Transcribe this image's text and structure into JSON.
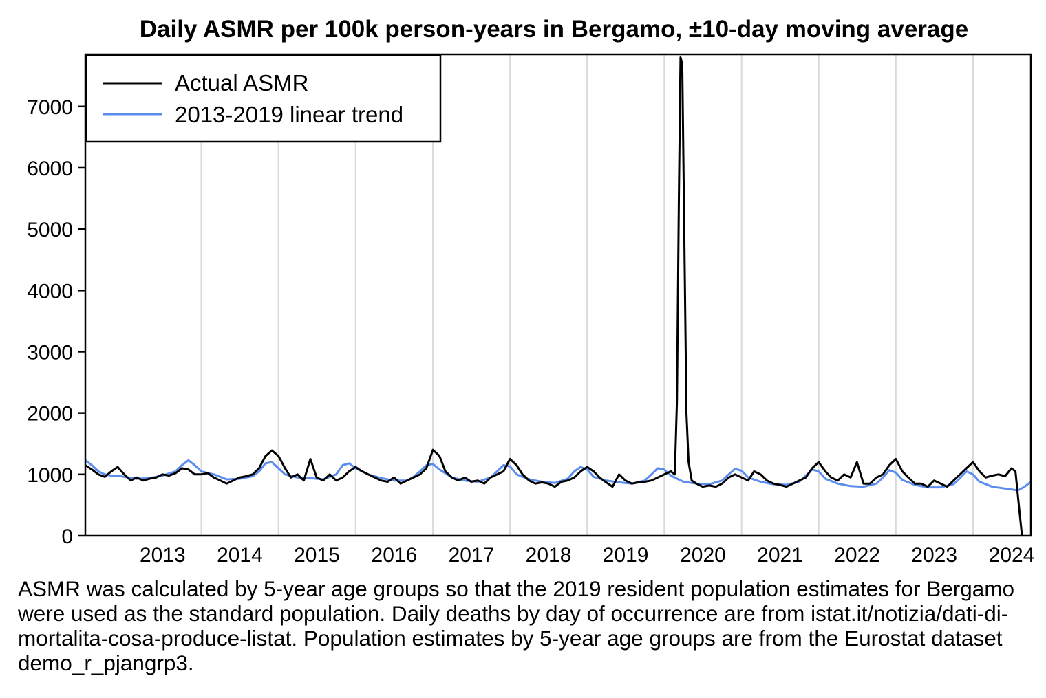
{
  "chart_data": {
    "type": "line",
    "title": "Daily ASMR per 100k person-years in Bergamo, ±10-day moving average",
    "xlabel": "",
    "ylabel": "",
    "x_range": [
      "2012-07-01",
      "2024-10-01"
    ],
    "ylim": [
      0,
      7850
    ],
    "y_ticks": [
      0,
      1000,
      2000,
      3000,
      4000,
      5000,
      6000,
      7000
    ],
    "x_tick_labels": [
      "2013",
      "2014",
      "2015",
      "2016",
      "2017",
      "2018",
      "2019",
      "2020",
      "2021",
      "2022",
      "2023",
      "2024"
    ],
    "grid": "vertical gridlines at year boundaries",
    "legend": {
      "position": "top-left",
      "entries": [
        "Actual ASMR",
        "2013-2019 linear trend"
      ]
    },
    "series": [
      {
        "name": "Actual ASMR",
        "color": "#000000",
        "points": [
          [
            "2012-07-01",
            1150
          ],
          [
            "2012-08-01",
            1080
          ],
          [
            "2012-09-01",
            1000
          ],
          [
            "2012-10-01",
            960
          ],
          [
            "2012-11-01",
            1050
          ],
          [
            "2012-12-01",
            1120
          ],
          [
            "2013-01-01",
            1000
          ],
          [
            "2013-02-01",
            900
          ],
          [
            "2013-03-01",
            950
          ],
          [
            "2013-04-01",
            900
          ],
          [
            "2013-05-01",
            930
          ],
          [
            "2013-06-01",
            950
          ],
          [
            "2013-07-01",
            1000
          ],
          [
            "2013-08-01",
            980
          ],
          [
            "2013-09-01",
            1020
          ],
          [
            "2013-10-01",
            1100
          ],
          [
            "2013-11-01",
            1080
          ],
          [
            "2013-12-01",
            1000
          ],
          [
            "2014-01-01",
            1000
          ],
          [
            "2014-02-01",
            1020
          ],
          [
            "2014-03-01",
            950
          ],
          [
            "2014-04-01",
            900
          ],
          [
            "2014-05-01",
            850
          ],
          [
            "2014-06-01",
            900
          ],
          [
            "2014-07-01",
            950
          ],
          [
            "2014-08-01",
            970
          ],
          [
            "2014-09-01",
            1000
          ],
          [
            "2014-10-01",
            1100
          ],
          [
            "2014-11-01",
            1300
          ],
          [
            "2014-12-01",
            1390
          ],
          [
            "2015-01-01",
            1300
          ],
          [
            "2015-02-01",
            1100
          ],
          [
            "2015-03-01",
            950
          ],
          [
            "2015-04-01",
            1000
          ],
          [
            "2015-05-01",
            900
          ],
          [
            "2015-06-01",
            1250
          ],
          [
            "2015-07-01",
            950
          ],
          [
            "2015-08-01",
            900
          ],
          [
            "2015-09-01",
            1000
          ],
          [
            "2015-10-01",
            900
          ],
          [
            "2015-11-01",
            950
          ],
          [
            "2015-12-01",
            1050
          ],
          [
            "2016-01-01",
            1120
          ],
          [
            "2016-02-01",
            1050
          ],
          [
            "2016-03-01",
            1000
          ],
          [
            "2016-04-01",
            950
          ],
          [
            "2016-05-01",
            900
          ],
          [
            "2016-06-01",
            880
          ],
          [
            "2016-07-01",
            950
          ],
          [
            "2016-08-01",
            850
          ],
          [
            "2016-09-01",
            900
          ],
          [
            "2016-10-01",
            950
          ],
          [
            "2016-11-01",
            1000
          ],
          [
            "2016-12-01",
            1100
          ],
          [
            "2017-01-01",
            1400
          ],
          [
            "2017-02-01",
            1300
          ],
          [
            "2017-03-01",
            1050
          ],
          [
            "2017-04-01",
            950
          ],
          [
            "2017-05-01",
            900
          ],
          [
            "2017-06-01",
            950
          ],
          [
            "2017-07-01",
            880
          ],
          [
            "2017-08-01",
            900
          ],
          [
            "2017-09-01",
            850
          ],
          [
            "2017-10-01",
            950
          ],
          [
            "2017-11-01",
            1000
          ],
          [
            "2017-12-01",
            1050
          ],
          [
            "2018-01-01",
            1250
          ],
          [
            "2018-02-01",
            1150
          ],
          [
            "2018-03-01",
            1000
          ],
          [
            "2018-04-01",
            900
          ],
          [
            "2018-05-01",
            850
          ],
          [
            "2018-06-01",
            870
          ],
          [
            "2018-07-01",
            850
          ],
          [
            "2018-08-01",
            800
          ],
          [
            "2018-09-01",
            880
          ],
          [
            "2018-10-01",
            900
          ],
          [
            "2018-11-01",
            950
          ],
          [
            "2018-12-01",
            1050
          ],
          [
            "2019-01-01",
            1120
          ],
          [
            "2019-02-01",
            1050
          ],
          [
            "2019-03-01",
            950
          ],
          [
            "2019-04-01",
            870
          ],
          [
            "2019-05-01",
            800
          ],
          [
            "2019-06-01",
            1000
          ],
          [
            "2019-07-01",
            900
          ],
          [
            "2019-08-01",
            850
          ],
          [
            "2019-09-01",
            870
          ],
          [
            "2019-10-01",
            880
          ],
          [
            "2019-11-01",
            900
          ],
          [
            "2019-12-01",
            950
          ],
          [
            "2020-01-01",
            1000
          ],
          [
            "2020-02-01",
            1050
          ],
          [
            "2020-02-20",
            1000
          ],
          [
            "2020-03-01",
            2200
          ],
          [
            "2020-03-10",
            5500
          ],
          [
            "2020-03-18",
            7800
          ],
          [
            "2020-03-26",
            7700
          ],
          [
            "2020-04-05",
            4800
          ],
          [
            "2020-04-15",
            2000
          ],
          [
            "2020-04-25",
            1200
          ],
          [
            "2020-05-10",
            900
          ],
          [
            "2020-06-01",
            850
          ],
          [
            "2020-07-01",
            800
          ],
          [
            "2020-08-01",
            820
          ],
          [
            "2020-09-01",
            800
          ],
          [
            "2020-10-01",
            850
          ],
          [
            "2020-11-01",
            950
          ],
          [
            "2020-12-01",
            1000
          ],
          [
            "2021-01-01",
            950
          ],
          [
            "2021-02-01",
            900
          ],
          [
            "2021-03-01",
            1050
          ],
          [
            "2021-04-01",
            1000
          ],
          [
            "2021-05-01",
            900
          ],
          [
            "2021-06-01",
            850
          ],
          [
            "2021-07-01",
            830
          ],
          [
            "2021-08-01",
            800
          ],
          [
            "2021-09-01",
            850
          ],
          [
            "2021-10-01",
            900
          ],
          [
            "2021-11-01",
            950
          ],
          [
            "2021-12-01",
            1100
          ],
          [
            "2022-01-01",
            1200
          ],
          [
            "2022-02-01",
            1050
          ],
          [
            "2022-03-01",
            950
          ],
          [
            "2022-04-01",
            900
          ],
          [
            "2022-05-01",
            1000
          ],
          [
            "2022-06-01",
            950
          ],
          [
            "2022-07-01",
            1200
          ],
          [
            "2022-08-01",
            850
          ],
          [
            "2022-09-01",
            850
          ],
          [
            "2022-10-01",
            950
          ],
          [
            "2022-11-01",
            1000
          ],
          [
            "2022-12-01",
            1150
          ],
          [
            "2023-01-01",
            1250
          ],
          [
            "2023-02-01",
            1050
          ],
          [
            "2023-03-01",
            950
          ],
          [
            "2023-04-01",
            850
          ],
          [
            "2023-05-01",
            850
          ],
          [
            "2023-06-01",
            800
          ],
          [
            "2023-07-01",
            900
          ],
          [
            "2023-08-01",
            850
          ],
          [
            "2023-09-01",
            800
          ],
          [
            "2023-10-01",
            900
          ],
          [
            "2023-11-01",
            1000
          ],
          [
            "2023-12-01",
            1100
          ],
          [
            "2024-01-01",
            1200
          ],
          [
            "2024-02-01",
            1050
          ],
          [
            "2024-03-01",
            950
          ],
          [
            "2024-04-01",
            980
          ],
          [
            "2024-05-01",
            1000
          ],
          [
            "2024-06-01",
            970
          ],
          [
            "2024-07-01",
            1100
          ],
          [
            "2024-07-20",
            1050
          ],
          [
            "2024-08-05",
            500
          ],
          [
            "2024-08-20",
            0
          ]
        ]
      },
      {
        "name": "2013-2019 linear trend",
        "color": "#5b8def",
        "points": [
          [
            "2012-07-01",
            1230
          ],
          [
            "2012-08-01",
            1150
          ],
          [
            "2012-09-01",
            1050
          ],
          [
            "2012-10-01",
            1000
          ],
          [
            "2012-11-01",
            980
          ],
          [
            "2012-12-01",
            980
          ],
          [
            "2013-01-01",
            960
          ],
          [
            "2013-03-01",
            930
          ],
          [
            "2013-05-01",
            940
          ],
          [
            "2013-07-01",
            980
          ],
          [
            "2013-09-01",
            1050
          ],
          [
            "2013-10-01",
            1150
          ],
          [
            "2013-11-01",
            1230
          ],
          [
            "2013-12-01",
            1150
          ],
          [
            "2014-01-01",
            1050
          ],
          [
            "2014-03-01",
            1000
          ],
          [
            "2014-05-01",
            920
          ],
          [
            "2014-07-01",
            930
          ],
          [
            "2014-09-01",
            970
          ],
          [
            "2014-10-01",
            1050
          ],
          [
            "2014-11-01",
            1180
          ],
          [
            "2014-12-01",
            1200
          ],
          [
            "2015-01-01",
            1100
          ],
          [
            "2015-02-01",
            1000
          ],
          [
            "2015-04-01",
            950
          ],
          [
            "2015-06-01",
            940
          ],
          [
            "2015-08-01",
            920
          ],
          [
            "2015-10-01",
            1000
          ],
          [
            "2015-11-01",
            1150
          ],
          [
            "2015-12-01",
            1180
          ],
          [
            "2016-01-01",
            1100
          ],
          [
            "2016-03-01",
            1000
          ],
          [
            "2016-05-01",
            940
          ],
          [
            "2016-07-01",
            900
          ],
          [
            "2016-09-01",
            900
          ],
          [
            "2016-10-01",
            960
          ],
          [
            "2016-11-01",
            1050
          ],
          [
            "2016-12-01",
            1150
          ],
          [
            "2017-01-01",
            1170
          ],
          [
            "2017-02-01",
            1080
          ],
          [
            "2017-04-01",
            950
          ],
          [
            "2017-06-01",
            900
          ],
          [
            "2017-08-01",
            880
          ],
          [
            "2017-10-01",
            950
          ],
          [
            "2017-11-01",
            1050
          ],
          [
            "2017-12-01",
            1150
          ],
          [
            "2018-01-01",
            1130
          ],
          [
            "2018-02-01",
            1000
          ],
          [
            "2018-04-01",
            920
          ],
          [
            "2018-06-01",
            880
          ],
          [
            "2018-08-01",
            860
          ],
          [
            "2018-10-01",
            930
          ],
          [
            "2018-11-01",
            1050
          ],
          [
            "2018-12-01",
            1120
          ],
          [
            "2019-01-01",
            1080
          ],
          [
            "2019-02-01",
            960
          ],
          [
            "2019-04-01",
            900
          ],
          [
            "2019-06-01",
            870
          ],
          [
            "2019-08-01",
            850
          ],
          [
            "2019-10-01",
            900
          ],
          [
            "2019-11-01",
            1000
          ],
          [
            "2019-12-01",
            1100
          ],
          [
            "2020-01-01",
            1080
          ],
          [
            "2020-02-01",
            980
          ],
          [
            "2020-04-01",
            880
          ],
          [
            "2020-06-01",
            850
          ],
          [
            "2020-08-01",
            840
          ],
          [
            "2020-10-01",
            900
          ],
          [
            "2020-11-01",
            1000
          ],
          [
            "2020-12-01",
            1090
          ],
          [
            "2021-01-01",
            1060
          ],
          [
            "2021-02-01",
            950
          ],
          [
            "2021-04-01",
            880
          ],
          [
            "2021-06-01",
            840
          ],
          [
            "2021-08-01",
            830
          ],
          [
            "2021-10-01",
            880
          ],
          [
            "2021-11-01",
            980
          ],
          [
            "2021-12-01",
            1080
          ],
          [
            "2022-01-01",
            1050
          ],
          [
            "2022-02-01",
            930
          ],
          [
            "2022-04-01",
            850
          ],
          [
            "2022-06-01",
            810
          ],
          [
            "2022-08-01",
            800
          ],
          [
            "2022-10-01",
            850
          ],
          [
            "2022-11-01",
            950
          ],
          [
            "2022-12-01",
            1070
          ],
          [
            "2023-01-01",
            1030
          ],
          [
            "2023-02-01",
            910
          ],
          [
            "2023-04-01",
            830
          ],
          [
            "2023-06-01",
            790
          ],
          [
            "2023-08-01",
            790
          ],
          [
            "2023-10-01",
            840
          ],
          [
            "2023-11-01",
            940
          ],
          [
            "2023-12-01",
            1050
          ],
          [
            "2024-01-01",
            1000
          ],
          [
            "2024-02-01",
            880
          ],
          [
            "2024-04-01",
            800
          ],
          [
            "2024-06-01",
            770
          ],
          [
            "2024-08-01",
            740
          ],
          [
            "2024-09-01",
            800
          ],
          [
            "2024-10-01",
            880
          ]
        ]
      }
    ]
  },
  "caption": "ASMR was calculated by 5-year age groups so that the 2019 resident population estimates for Bergamo were used as the standard population. Daily deaths by day of occurrence are from istat.it/notizia/dati-di-mortalita-cosa-produce-listat. Population estimates by 5-year age groups are from the Eurostat dataset demo_r_pjangrp3."
}
